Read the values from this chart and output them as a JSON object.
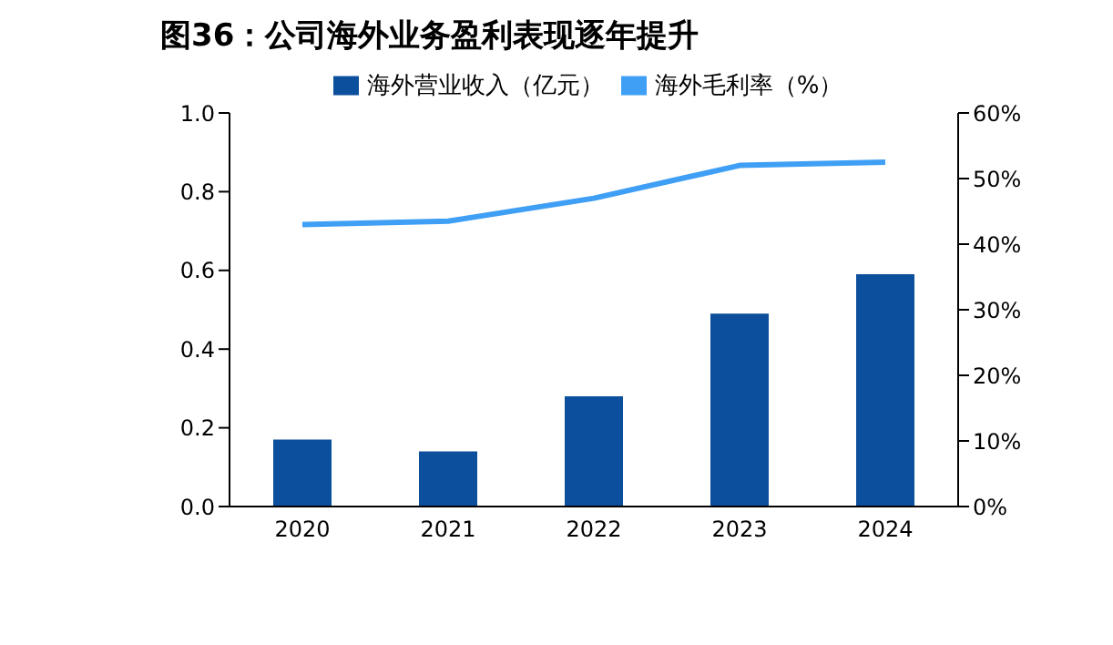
{
  "chart_data": {
    "type": "bar",
    "title": "图36：公司海外业务盈利表现逐年提升",
    "categories": [
      "2020",
      "2021",
      "2022",
      "2023",
      "2024"
    ],
    "series": [
      {
        "name": "海外营业收入（亿元）",
        "color": "#0c4f9c",
        "values": [
          0.17,
          0.14,
          0.28,
          0.49,
          0.59
        ]
      },
      {
        "name": "海外毛利率（%）",
        "type": "line",
        "axis": "y2",
        "color": "#3f9ff5",
        "values": [
          43,
          43.5,
          47,
          52,
          52.5
        ]
      }
    ],
    "ylim": [
      0,
      1
    ],
    "yticks": [
      {
        "value": 0,
        "label": "0.0"
      },
      {
        "value": 0.2,
        "label": "0.2"
      },
      {
        "value": 0.4,
        "label": "0.4"
      },
      {
        "value": 0.6,
        "label": "0.6"
      },
      {
        "value": 0.8,
        "label": "0.8"
      },
      {
        "value": 1,
        "label": "1.0"
      }
    ],
    "y2lim": [
      0,
      60
    ],
    "y2ticks": [
      {
        "value": 0,
        "label": "0%"
      },
      {
        "value": 10,
        "label": "10%"
      },
      {
        "value": 20,
        "label": "20%"
      },
      {
        "value": 30,
        "label": "30%"
      },
      {
        "value": 40,
        "label": "40%"
      },
      {
        "value": 50,
        "label": "50%"
      },
      {
        "value": 60,
        "label": "60%"
      }
    ],
    "grid": false,
    "legend": "top",
    "marker": "none"
  }
}
